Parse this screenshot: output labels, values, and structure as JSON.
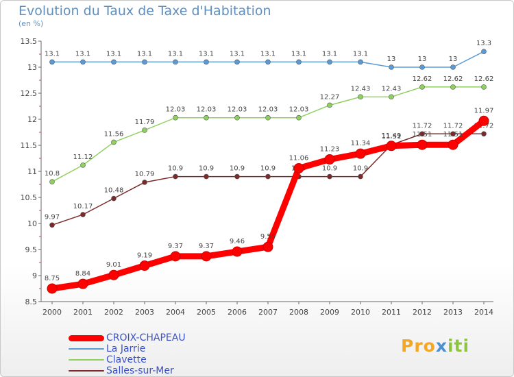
{
  "title": "Evolution du Taux de Taxe d'Habitation",
  "subtitle": "(en %)",
  "brand": {
    "part1": "Pro",
    "part2": "x",
    "part3": "iti"
  },
  "chart_data": {
    "type": "line",
    "x": [
      "2000",
      "2001",
      "2002",
      "2003",
      "2004",
      "2005",
      "2006",
      "2007",
      "2008",
      "2009",
      "2010",
      "2011",
      "2012",
      "2013",
      "2014"
    ],
    "ylim": [
      8.5,
      13.5
    ],
    "yticks": [
      8.5,
      9,
      9.5,
      10,
      10.5,
      11,
      11.5,
      12,
      12.5,
      13,
      13.5
    ],
    "ytick_labels": [
      "8.5",
      "9",
      "9.5",
      "10",
      "10.5",
      "11",
      "11.5",
      "12",
      "12.5",
      "13",
      "13.5"
    ],
    "grid": false,
    "legend_position": "bottom-left",
    "series": [
      {
        "name": "La Jarrie",
        "color": "#5b9bd5",
        "values": [
          13.1,
          13.1,
          13.1,
          13.1,
          13.1,
          13.1,
          13.1,
          13.1,
          13.1,
          13.1,
          13.1,
          13,
          13,
          13,
          13.3
        ],
        "labels": [
          "13.1",
          "13.1",
          "13.1",
          "13.1",
          "13.1",
          "13.1",
          "13.1",
          "13.1",
          "13.1",
          "13.1",
          "13.1",
          "13",
          "13",
          "13",
          "13.3"
        ]
      },
      {
        "name": "Clavette",
        "color": "#8fd15f",
        "values": [
          10.8,
          11.12,
          11.56,
          11.79,
          12.03,
          12.03,
          12.03,
          12.03,
          12.03,
          12.27,
          12.43,
          12.43,
          12.62,
          12.62,
          12.62
        ],
        "labels": [
          "10.8",
          "11.12",
          "11.56",
          "11.79",
          "12.03",
          "12.03",
          "12.03",
          "12.03",
          "12.03",
          "12.27",
          "12.43",
          "12.43",
          "12.62",
          "12.62",
          "12.62"
        ]
      },
      {
        "name": "Salles-sur-Mer",
        "color": "#7a2a2a",
        "values": [
          9.97,
          10.17,
          10.48,
          10.79,
          10.9,
          10.9,
          10.9,
          10.9,
          10.9,
          10.9,
          10.9,
          11.51,
          11.72,
          11.72,
          11.72
        ],
        "labels": [
          "9.97",
          "10.17",
          "10.48",
          "10.79",
          "10.9",
          "10.9",
          "10.9",
          "10.9",
          "10.9",
          "10.9",
          "10.9",
          "11.51",
          "11.72",
          "11.72",
          "11.72"
        ]
      },
      {
        "name": "CROIX-CHAPEAU",
        "color": "#ff0000",
        "values": [
          8.75,
          8.84,
          9.01,
          9.19,
          9.37,
          9.37,
          9.46,
          9.55,
          11.06,
          11.23,
          11.34,
          11.49,
          11.51,
          11.51,
          11.97
        ],
        "labels": [
          "8.75",
          "8.84",
          "9.01",
          "9.19",
          "9.37",
          "9.37",
          "9.46",
          "9.55",
          "11.06",
          "11.23",
          "11.34",
          "11.49",
          "11.51",
          "11.51",
          "11.97"
        ]
      }
    ]
  },
  "legend": [
    {
      "label": "CROIX-CHAPEAU",
      "color": "#ff0000"
    },
    {
      "label": "La Jarrie",
      "color": "#5b9bd5"
    },
    {
      "label": "Clavette",
      "color": "#8fd15f"
    },
    {
      "label": "Salles-sur-Mer",
      "color": "#7a2a2a"
    }
  ]
}
